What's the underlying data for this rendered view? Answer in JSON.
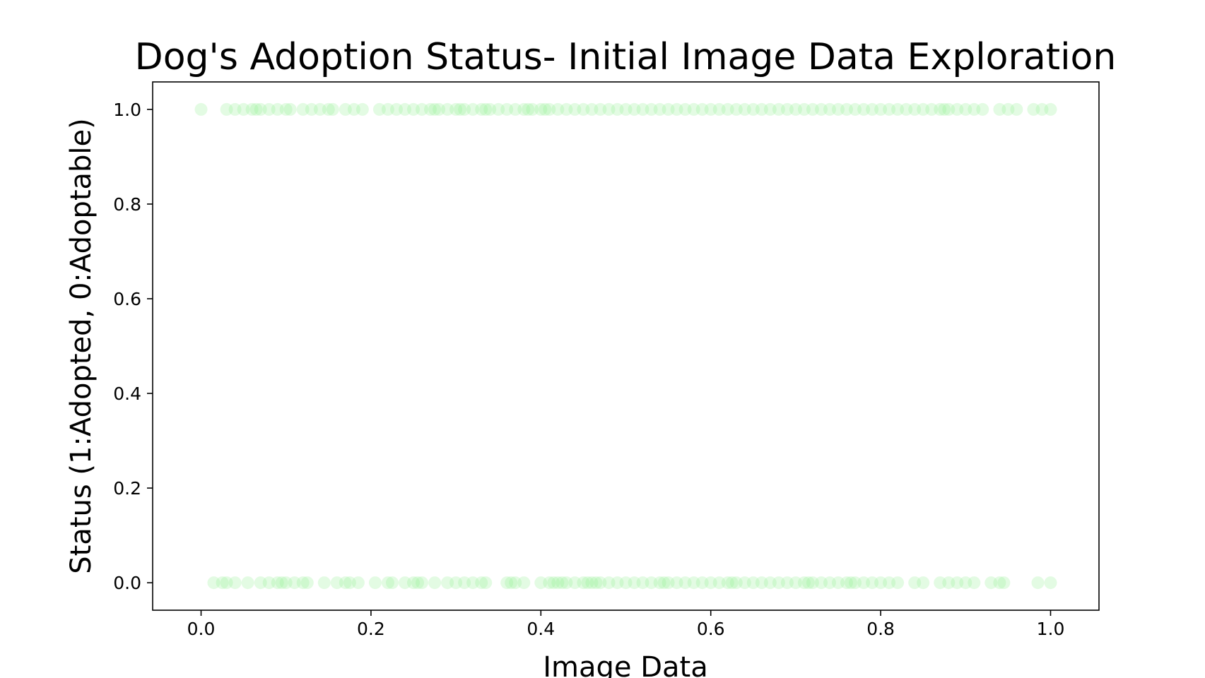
{
  "chart_data": {
    "type": "scatter",
    "title": "Dog's Adoption Status- Initial Image Data Exploration",
    "xlabel": "Image Data",
    "ylabel": "Status (1:Adopted, 0:Adoptable)",
    "xlim": [
      -0.057,
      1.057
    ],
    "ylim": [
      -0.058,
      1.058
    ],
    "x_ticks": [
      {
        "value": 0.0,
        "label": "0.0"
      },
      {
        "value": 0.2,
        "label": "0.2"
      },
      {
        "value": 0.4,
        "label": "0.4"
      },
      {
        "value": 0.6,
        "label": "0.6"
      },
      {
        "value": 0.8,
        "label": "0.8"
      },
      {
        "value": 1.0,
        "label": "1.0"
      }
    ],
    "y_ticks": [
      {
        "value": 0.0,
        "label": "0.0"
      },
      {
        "value": 0.2,
        "label": "0.2"
      },
      {
        "value": 0.4,
        "label": "0.4"
      },
      {
        "value": 0.6,
        "label": "0.6"
      },
      {
        "value": 0.8,
        "label": "0.8"
      },
      {
        "value": 1.0,
        "label": "1.0"
      }
    ],
    "grid": false,
    "marker_color": "#90ee90",
    "marker_alpha": 0.25,
    "series": [
      {
        "x": [
          0.0,
          0.03,
          0.04,
          0.05,
          0.06,
          0.065,
          0.07,
          0.08,
          0.09,
          0.1,
          0.105,
          0.12,
          0.13,
          0.14,
          0.15,
          0.155,
          0.17,
          0.18,
          0.19,
          0.21,
          0.22,
          0.23,
          0.24,
          0.25,
          0.26,
          0.27,
          0.275,
          0.28,
          0.29,
          0.3,
          0.305,
          0.31,
          0.32,
          0.33,
          0.335,
          0.34,
          0.35,
          0.36,
          0.37,
          0.38,
          0.385,
          0.39,
          0.4,
          0.405,
          0.41,
          0.42,
          0.43,
          0.44,
          0.45,
          0.46,
          0.47,
          0.48,
          0.49,
          0.5,
          0.51,
          0.52,
          0.53,
          0.54,
          0.55,
          0.56,
          0.57,
          0.58,
          0.59,
          0.6,
          0.61,
          0.62,
          0.63,
          0.64,
          0.65,
          0.66,
          0.67,
          0.68,
          0.69,
          0.7,
          0.71,
          0.72,
          0.73,
          0.74,
          0.75,
          0.76,
          0.77,
          0.78,
          0.79,
          0.8,
          0.81,
          0.82,
          0.83,
          0.84,
          0.85,
          0.86,
          0.87,
          0.875,
          0.88,
          0.89,
          0.9,
          0.91,
          0.92,
          0.94,
          0.95,
          0.96,
          0.98,
          0.99,
          1.0
        ],
        "y": [
          1,
          1,
          1,
          1,
          1,
          1,
          1,
          1,
          1,
          1,
          1,
          1,
          1,
          1,
          1,
          1,
          1,
          1,
          1,
          1,
          1,
          1,
          1,
          1,
          1,
          1,
          1,
          1,
          1,
          1,
          1,
          1,
          1,
          1,
          1,
          1,
          1,
          1,
          1,
          1,
          1,
          1,
          1,
          1,
          1,
          1,
          1,
          1,
          1,
          1,
          1,
          1,
          1,
          1,
          1,
          1,
          1,
          1,
          1,
          1,
          1,
          1,
          1,
          1,
          1,
          1,
          1,
          1,
          1,
          1,
          1,
          1,
          1,
          1,
          1,
          1,
          1,
          1,
          1,
          1,
          1,
          1,
          1,
          1,
          1,
          1,
          1,
          1,
          1,
          1,
          1,
          1,
          1,
          1,
          1,
          1,
          1,
          1,
          1,
          1,
          1,
          1,
          1
        ]
      },
      {
        "x": [
          0.015,
          0.025,
          0.03,
          0.04,
          0.055,
          0.07,
          0.08,
          0.09,
          0.095,
          0.1,
          0.11,
          0.12,
          0.125,
          0.145,
          0.16,
          0.17,
          0.175,
          0.185,
          0.205,
          0.22,
          0.225,
          0.24,
          0.25,
          0.255,
          0.26,
          0.275,
          0.29,
          0.3,
          0.31,
          0.32,
          0.33,
          0.335,
          0.36,
          0.365,
          0.37,
          0.38,
          0.4,
          0.41,
          0.415,
          0.42,
          0.425,
          0.43,
          0.44,
          0.45,
          0.455,
          0.46,
          0.465,
          0.47,
          0.48,
          0.49,
          0.5,
          0.51,
          0.52,
          0.53,
          0.54,
          0.545,
          0.55,
          0.56,
          0.57,
          0.58,
          0.59,
          0.6,
          0.61,
          0.62,
          0.625,
          0.63,
          0.64,
          0.65,
          0.66,
          0.67,
          0.68,
          0.69,
          0.7,
          0.71,
          0.715,
          0.72,
          0.73,
          0.74,
          0.75,
          0.76,
          0.765,
          0.77,
          0.78,
          0.79,
          0.8,
          0.81,
          0.82,
          0.84,
          0.85,
          0.87,
          0.88,
          0.89,
          0.9,
          0.91,
          0.93,
          0.94,
          0.945,
          0.985,
          1.0
        ],
        "y": [
          0,
          0,
          0,
          0,
          0,
          0,
          0,
          0,
          0,
          0,
          0,
          0,
          0,
          0,
          0,
          0,
          0,
          0,
          0,
          0,
          0,
          0,
          0,
          0,
          0,
          0,
          0,
          0,
          0,
          0,
          0,
          0,
          0,
          0,
          0,
          0,
          0,
          0,
          0,
          0,
          0,
          0,
          0,
          0,
          0,
          0,
          0,
          0,
          0,
          0,
          0,
          0,
          0,
          0,
          0,
          0,
          0,
          0,
          0,
          0,
          0,
          0,
          0,
          0,
          0,
          0,
          0,
          0,
          0,
          0,
          0,
          0,
          0,
          0,
          0,
          0,
          0,
          0,
          0,
          0,
          0,
          0,
          0,
          0,
          0,
          0,
          0,
          0,
          0,
          0,
          0,
          0,
          0,
          0,
          0,
          0,
          0,
          0,
          0
        ]
      }
    ]
  }
}
